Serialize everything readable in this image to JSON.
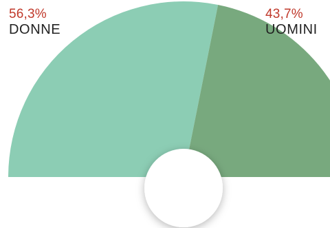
{
  "chart_data": {
    "type": "pie",
    "subtype": "half-donut",
    "categories": [
      "DONNE",
      "UOMINI"
    ],
    "values": [
      56.3,
      43.7
    ],
    "value_labels": [
      "56,3%",
      "43,7%"
    ],
    "colors": [
      "#8ccdb4",
      "#78a97e"
    ],
    "label_color": "#c0392b",
    "legend": "top-left and top-right labels"
  }
}
